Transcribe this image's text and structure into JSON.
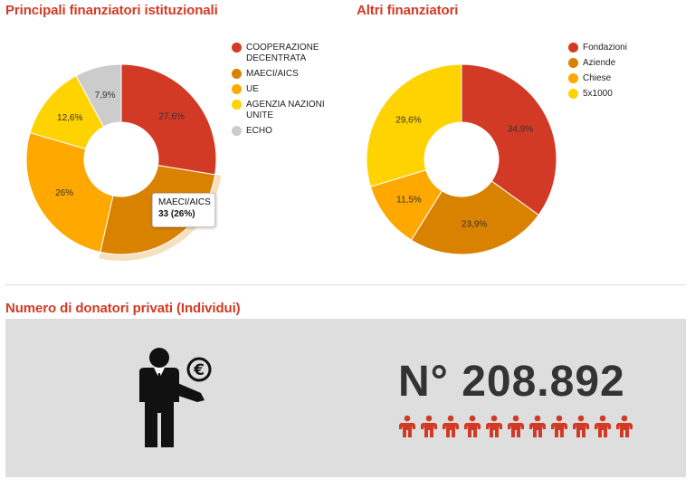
{
  "titles": {
    "chart1": "Principali finanziatori istituzionali",
    "chart2": "Altri finanziatori",
    "donors": "Numero di donatori privati (Individui)"
  },
  "chart_data": [
    {
      "type": "pie",
      "donut": true,
      "title": "Principali finanziatori istituzionali",
      "categories": [
        "COOPERAZIONE DECENTRATA",
        "MAECI/AICS",
        "UE",
        "AGENZIA NAZIONI UNITE",
        "ECHO"
      ],
      "values": [
        27.6,
        26,
        26,
        12.6,
        7.9
      ],
      "labels": [
        "27,6%",
        "",
        "26%",
        "12,6%",
        "7,9%"
      ],
      "colors": [
        "#d33a25",
        "#d98200",
        "#ffa800",
        "#ffd300",
        "#cccccc"
      ],
      "legend": "right",
      "highlighted": 1,
      "tooltip": {
        "category": "MAECI/AICS",
        "value": "33 (26%)"
      }
    },
    {
      "type": "pie",
      "donut": true,
      "title": "Altri finanziatori",
      "categories": [
        "Fondazioni",
        "Aziende",
        "Chiese",
        "5x1000"
      ],
      "values": [
        34.9,
        23.9,
        11.5,
        29.6
      ],
      "labels": [
        "34,9%",
        "23,9%",
        "11,5%",
        "29,6%"
      ],
      "colors": [
        "#d33a25",
        "#d98200",
        "#ffa800",
        "#ffd300"
      ],
      "legend": "right"
    }
  ],
  "legend1": [
    "COOPERAZIONE DECENTRATA",
    "MAECI/AICS",
    "UE",
    "AGENZIA NAZIONI UNITE",
    "ECHO"
  ],
  "legend2": [
    "Fondazioni",
    "Aziende",
    "Chiese",
    "5x1000"
  ],
  "tooltip": {
    "category": "MAECI/AICS",
    "value": "33 (26%)"
  },
  "donors": {
    "count": "N° 208.892",
    "icon": "donor-euro-icon",
    "people_icons": 11,
    "people_color": "#d33a25",
    "panel_color": "#dedede"
  }
}
